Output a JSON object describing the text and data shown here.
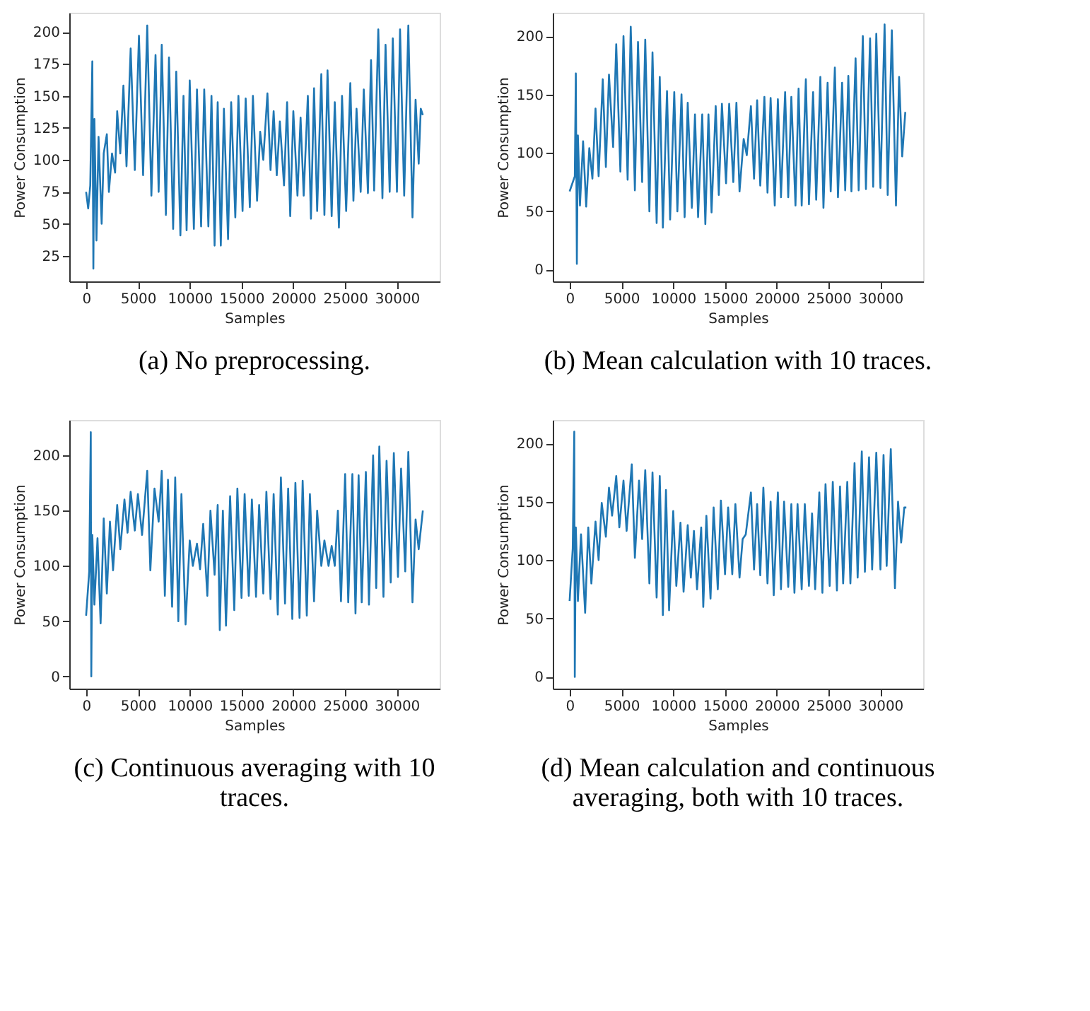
{
  "chart_data": [
    {
      "type": "line",
      "title": "(a) No preprocessing.",
      "xlabel": "Samples",
      "ylabel": "Power Consumption",
      "color": "#1f77b4",
      "xlim": [
        -1625,
        34125
      ],
      "xticks": [
        0,
        5000,
        10000,
        15000,
        20000,
        25000,
        30000
      ],
      "ylim": [
        5,
        215
      ],
      "yticks": [
        25,
        50,
        75,
        100,
        125,
        150,
        175,
        200
      ],
      "grid": false,
      "x": [
        0,
        200,
        400,
        600,
        700,
        800,
        1000,
        1200,
        1500,
        1700,
        2000,
        2200,
        2500,
        2800,
        3000,
        3300,
        3600,
        3900,
        4300,
        4700,
        5100,
        5500,
        5900,
        6300,
        6700,
        7000,
        7300,
        7700,
        8000,
        8400,
        8700,
        9100,
        9400,
        9700,
        10000,
        10400,
        10700,
        11100,
        11400,
        11800,
        12100,
        12400,
        12700,
        13000,
        13300,
        13700,
        14000,
        14400,
        14700,
        15100,
        15400,
        15800,
        16100,
        16500,
        16800,
        17100,
        17500,
        17800,
        18100,
        18400,
        18700,
        19100,
        19400,
        19700,
        20000,
        20400,
        20700,
        21000,
        21400,
        21700,
        22000,
        22300,
        22700,
        23000,
        23300,
        23700,
        24000,
        24400,
        24700,
        25100,
        25500,
        25800,
        26100,
        26500,
        26800,
        27200,
        27500,
        27800,
        28200,
        28600,
        28900,
        29300,
        29600,
        30000,
        30300,
        30700,
        31100,
        31500,
        31800,
        32100,
        32300,
        32500
      ],
      "values": [
        75,
        62,
        80,
        177,
        15,
        132,
        37,
        118,
        50,
        105,
        120,
        75,
        105,
        90,
        138,
        105,
        158,
        95,
        187,
        92,
        197,
        88,
        205,
        72,
        182,
        75,
        190,
        57,
        180,
        46,
        169,
        41,
        150,
        45,
        162,
        46,
        155,
        48,
        155,
        48,
        150,
        33,
        145,
        33,
        140,
        38,
        145,
        55,
        150,
        60,
        148,
        63,
        150,
        68,
        122,
        100,
        152,
        92,
        138,
        88,
        130,
        80,
        145,
        56,
        138,
        72,
        133,
        72,
        150,
        54,
        156,
        60,
        167,
        57,
        170,
        56,
        145,
        47,
        150,
        60,
        160,
        68,
        140,
        75,
        155,
        74,
        178,
        76,
        202,
        70,
        190,
        75,
        195,
        75,
        202,
        72,
        205,
        55,
        147,
        97,
        140,
        135
      ]
    },
    {
      "type": "line",
      "title": "(b) Mean calculation with 10 traces.",
      "xlabel": "Samples",
      "ylabel": "Power Consumption",
      "color": "#1f77b4",
      "xlim": [
        -1625,
        34125
      ],
      "xticks": [
        0,
        5000,
        10000,
        15000,
        20000,
        25000,
        30000
      ],
      "ylim": [
        -10,
        220
      ],
      "yticks": [
        0,
        50,
        100,
        150,
        200
      ],
      "grid": false,
      "x": [
        0,
        500,
        600,
        700,
        800,
        1000,
        1300,
        1600,
        1900,
        2200,
        2500,
        2800,
        3200,
        3500,
        3800,
        4200,
        4500,
        4900,
        5200,
        5600,
        5900,
        6300,
        6600,
        7000,
        7300,
        7700,
        8000,
        8400,
        8700,
        9000,
        9400,
        9700,
        10100,
        10400,
        10800,
        11100,
        11400,
        11800,
        12100,
        12400,
        12800,
        13100,
        13400,
        13700,
        14100,
        14400,
        14700,
        15100,
        15400,
        15800,
        16100,
        16400,
        16800,
        17100,
        17500,
        17800,
        18100,
        18400,
        18800,
        19100,
        19400,
        19800,
        20100,
        20400,
        20800,
        21100,
        21400,
        21800,
        22100,
        22400,
        22800,
        23100,
        23500,
        23800,
        24200,
        24500,
        24900,
        25200,
        25600,
        25900,
        26300,
        26600,
        26900,
        27200,
        27600,
        27900,
        28300,
        28600,
        29000,
        29300,
        29600,
        30000,
        30400,
        30700,
        31100,
        31500,
        31800,
        32100,
        32400
      ],
      "values": [
        67,
        80,
        168,
        5,
        115,
        55,
        110,
        54,
        104,
        78,
        138,
        80,
        163,
        88,
        167,
        105,
        193,
        84,
        200,
        77,
        208,
        68,
        195,
        75,
        197,
        50,
        186,
        40,
        165,
        36,
        153,
        43,
        152,
        50,
        150,
        45,
        143,
        53,
        133,
        45,
        133,
        39,
        133,
        49,
        140,
        64,
        142,
        74,
        142,
        75,
        143,
        67,
        112,
        98,
        140,
        78,
        145,
        72,
        148,
        66,
        147,
        55,
        146,
        62,
        152,
        62,
        148,
        55,
        155,
        55,
        163,
        56,
        152,
        60,
        165,
        53,
        160,
        67,
        173,
        62,
        160,
        68,
        166,
        67,
        181,
        68,
        200,
        69,
        198,
        71,
        202,
        70,
        210,
        64,
        205,
        55,
        165,
        97,
        135
      ]
    },
    {
      "type": "line",
      "title": "(c) Continuous averaging with 10 traces.",
      "xlabel": "Samples",
      "ylabel": "Power Consumption",
      "color": "#1f77b4",
      "xlim": [
        -1625,
        34125
      ],
      "xticks": [
        0,
        5000,
        10000,
        15000,
        20000,
        25000,
        30000
      ],
      "ylim": [
        -11,
        232
      ],
      "yticks": [
        0,
        50,
        100,
        150,
        200
      ],
      "grid": false,
      "x": [
        0,
        300,
        450,
        500,
        600,
        800,
        1100,
        1400,
        1700,
        2000,
        2300,
        2600,
        3000,
        3300,
        3700,
        4000,
        4300,
        4700,
        5000,
        5400,
        5900,
        6200,
        6600,
        7000,
        7300,
        7600,
        7900,
        8300,
        8600,
        8900,
        9200,
        9600,
        10000,
        10300,
        10700,
        11000,
        11300,
        11700,
        12000,
        12400,
        12700,
        12900,
        13200,
        13500,
        13900,
        14300,
        14600,
        15000,
        15300,
        15700,
        16000,
        16400,
        16700,
        17100,
        17400,
        17800,
        18100,
        18500,
        18800,
        19200,
        19500,
        19900,
        20200,
        20600,
        20900,
        21300,
        21600,
        22000,
        22300,
        22700,
        23000,
        23400,
        23700,
        24000,
        24300,
        24600,
        25000,
        25300,
        25700,
        26000,
        26300,
        26600,
        27000,
        27300,
        27700,
        28000,
        28300,
        28700,
        29000,
        29400,
        29700,
        30100,
        30400,
        30800,
        31100,
        31500,
        31800,
        32100,
        32500
      ],
      "values": [
        55,
        95,
        221,
        0,
        128,
        65,
        125,
        48,
        143,
        75,
        140,
        96,
        155,
        115,
        160,
        130,
        167,
        132,
        165,
        128,
        186,
        96,
        170,
        140,
        186,
        73,
        178,
        63,
        180,
        50,
        165,
        47,
        123,
        100,
        120,
        97,
        138,
        73,
        150,
        92,
        155,
        42,
        150,
        46,
        163,
        60,
        170,
        71,
        165,
        73,
        160,
        72,
        155,
        75,
        167,
        70,
        165,
        56,
        180,
        66,
        170,
        52,
        175,
        53,
        177,
        55,
        165,
        68,
        150,
        100,
        123,
        100,
        118,
        100,
        150,
        68,
        183,
        67,
        183,
        57,
        182,
        67,
        185,
        65,
        200,
        80,
        208,
        72,
        195,
        85,
        202,
        90,
        188,
        95,
        203,
        67,
        142,
        115,
        150
      ]
    },
    {
      "type": "line",
      "title": "(d) Mean calculation and continuous averaging, both with 10 traces.",
      "xlabel": "Samples",
      "ylabel": "Power Consumption",
      "color": "#1f77b4",
      "xlim": [
        -1625,
        34125
      ],
      "xticks": [
        0,
        5000,
        10000,
        15000,
        20000,
        25000,
        30000
      ],
      "ylim": [
        -10,
        220
      ],
      "yticks": [
        0,
        50,
        100,
        150,
        200
      ],
      "grid": false,
      "x": [
        0,
        300,
        450,
        500,
        600,
        800,
        1100,
        1500,
        1800,
        2100,
        2500,
        2800,
        3100,
        3500,
        3800,
        4100,
        4500,
        4800,
        5200,
        5500,
        6000,
        6300,
        6700,
        7000,
        7300,
        7700,
        8000,
        8400,
        8700,
        9000,
        9300,
        9600,
        10000,
        10300,
        10700,
        11000,
        11400,
        11700,
        12000,
        12300,
        12700,
        12900,
        13200,
        13600,
        13900,
        14300,
        14600,
        15000,
        15300,
        15700,
        16000,
        16400,
        16700,
        17000,
        17500,
        17800,
        18100,
        18400,
        18700,
        19100,
        19400,
        19700,
        20100,
        20400,
        20700,
        21100,
        21400,
        21700,
        22000,
        22400,
        22700,
        23100,
        23400,
        23700,
        24100,
        24400,
        24700,
        25100,
        25400,
        25800,
        26100,
        26400,
        26800,
        27100,
        27500,
        27800,
        28200,
        28500,
        28900,
        29200,
        29600,
        30000,
        30300,
        30600,
        31000,
        31400,
        31700,
        32000,
        32300,
        32500
      ],
      "values": [
        65,
        110,
        210,
        0,
        128,
        65,
        122,
        55,
        128,
        80,
        133,
        100,
        149,
        120,
        162,
        138,
        172,
        128,
        168,
        125,
        182,
        102,
        168,
        118,
        177,
        80,
        175,
        68,
        172,
        53,
        160,
        57,
        142,
        78,
        132,
        73,
        130,
        85,
        125,
        75,
        128,
        60,
        138,
        67,
        145,
        75,
        151,
        88,
        145,
        88,
        148,
        85,
        118,
        122,
        158,
        92,
        148,
        87,
        162,
        80,
        150,
        70,
        158,
        75,
        150,
        77,
        148,
        72,
        148,
        75,
        148,
        78,
        140,
        75,
        158,
        72,
        165,
        78,
        167,
        74,
        163,
        80,
        167,
        80,
        183,
        85,
        193,
        90,
        188,
        92,
        192,
        92,
        190,
        95,
        195,
        76,
        150,
        115,
        145,
        145
      ]
    }
  ]
}
